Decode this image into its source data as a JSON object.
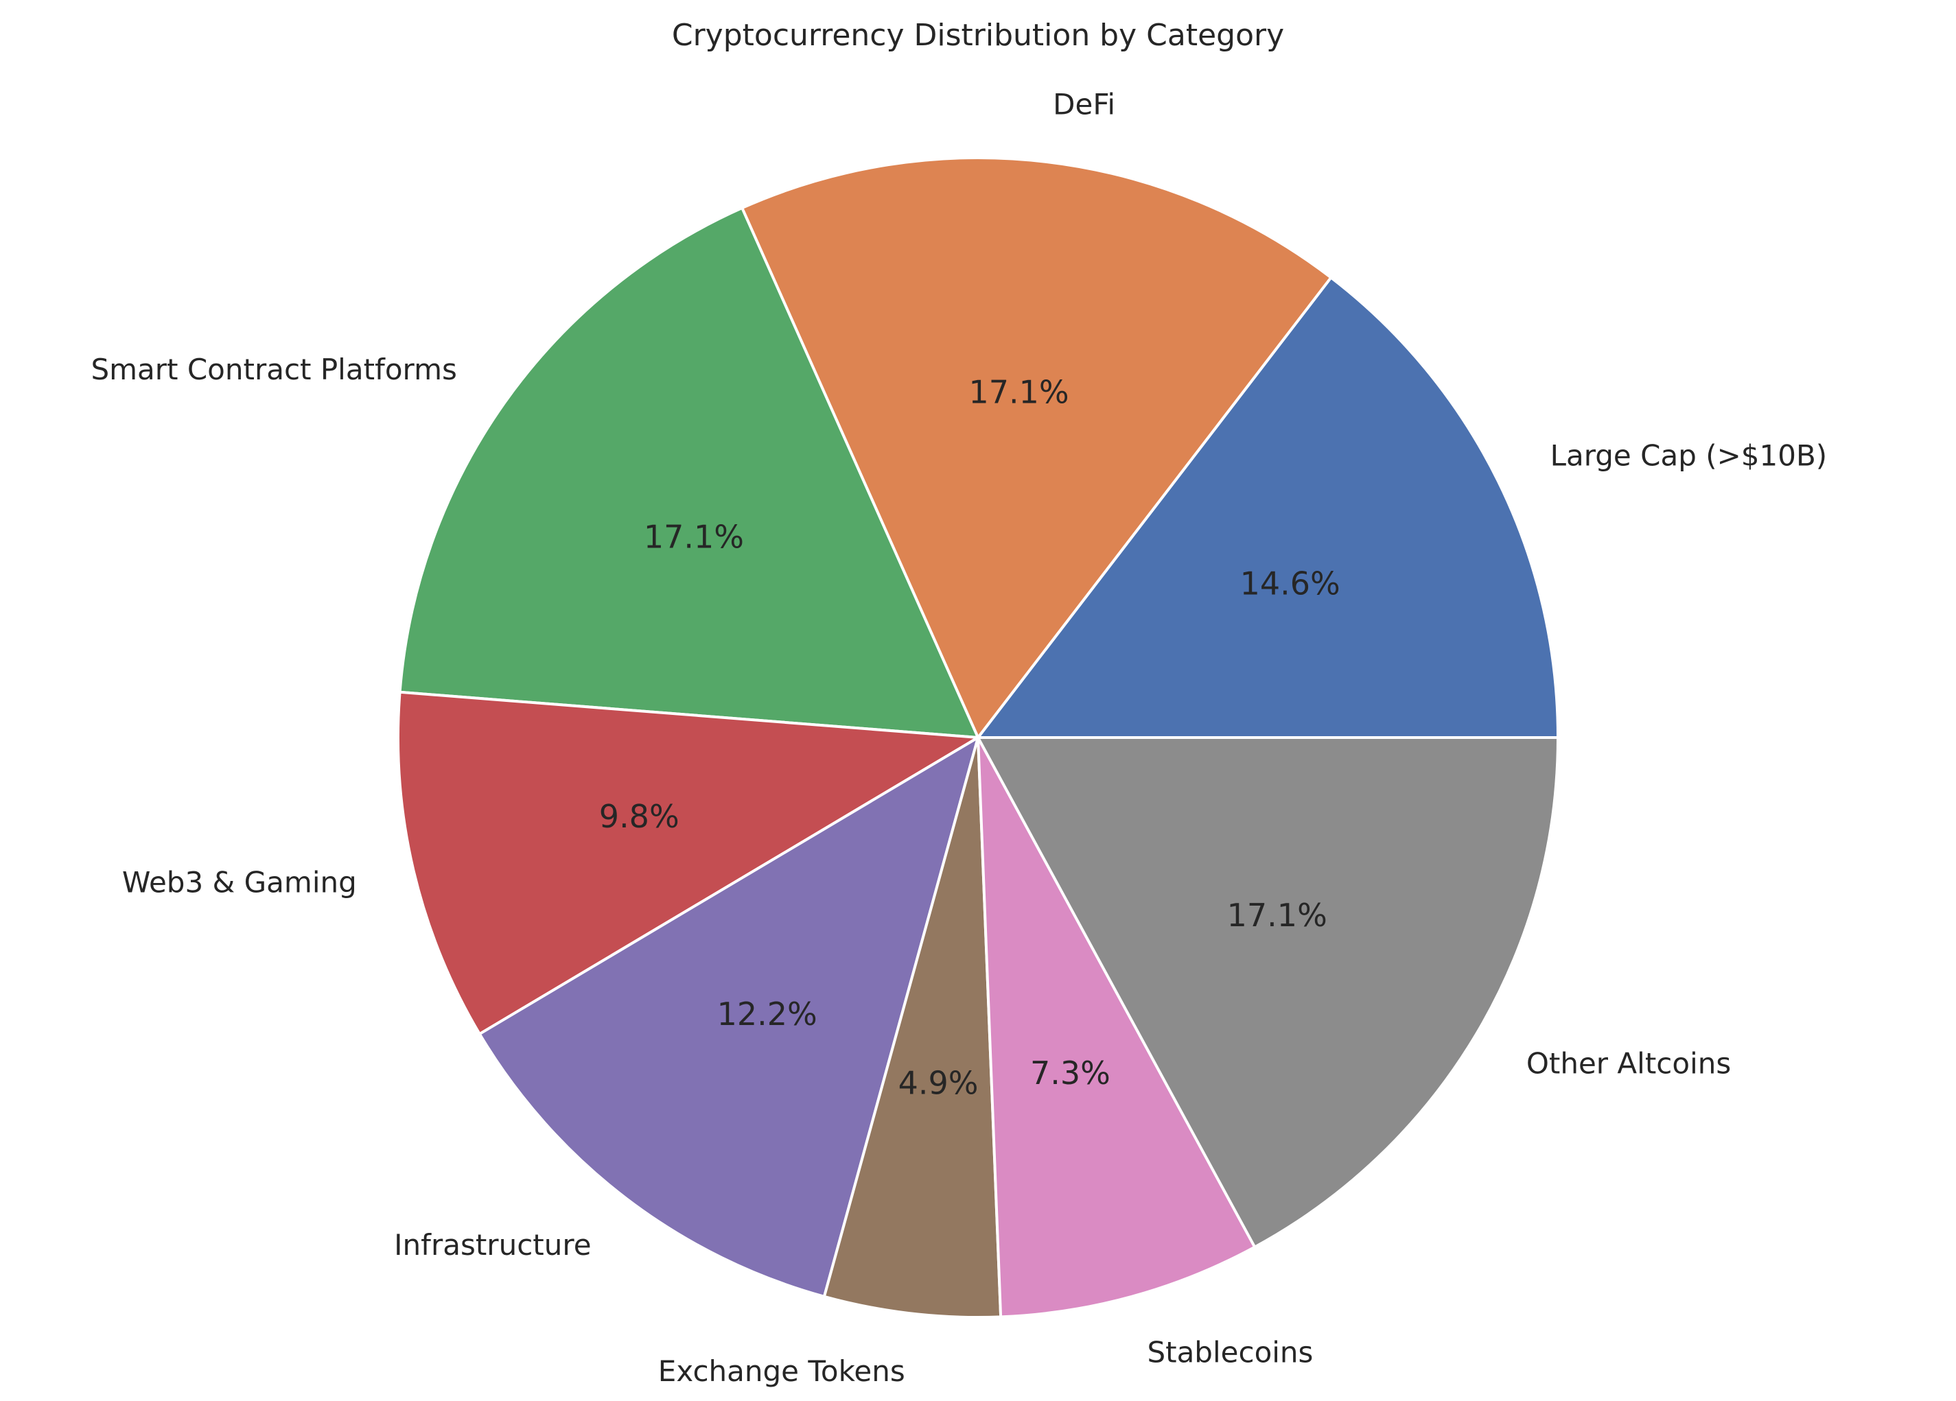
{
  "chart_data": {
    "type": "pie",
    "title": "Cryptocurrency Distribution by Category",
    "start_angle_deg": 0,
    "direction": "counterclockwise",
    "slices": [
      {
        "label": "Large Cap (>$10B)",
        "value": 14.6,
        "pct_label": "14.6%",
        "color": "#4c72b0"
      },
      {
        "label": "DeFi",
        "value": 17.1,
        "pct_label": "17.1%",
        "color": "#dd8452"
      },
      {
        "label": "Smart Contract Platforms",
        "value": 17.1,
        "pct_label": "17.1%",
        "color": "#55a868"
      },
      {
        "label": "Web3 & Gaming",
        "value": 9.8,
        "pct_label": "9.8%",
        "color": "#c44e52"
      },
      {
        "label": "Infrastructure",
        "value": 12.2,
        "pct_label": "12.2%",
        "color": "#8172b3"
      },
      {
        "label": "Exchange Tokens",
        "value": 4.9,
        "pct_label": "4.9%",
        "color": "#937860"
      },
      {
        "label": "Stablecoins",
        "value": 7.3,
        "pct_label": "7.3%",
        "color": "#da8bc3"
      },
      {
        "label": "Other Altcoins",
        "value": 17.1,
        "pct_label": "17.1%",
        "color": "#8c8c8c"
      }
    ]
  }
}
